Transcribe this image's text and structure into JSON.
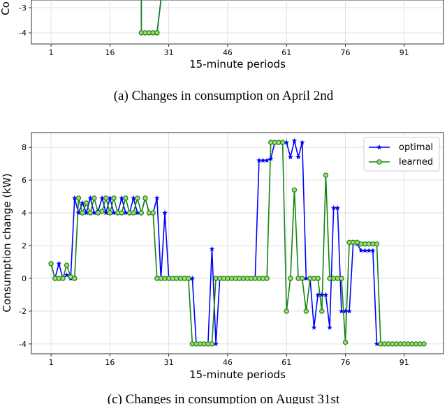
{
  "caption_top": "(a) Changes in consumption on April 2nd",
  "caption_bottom": "(c) Changes in consumption on August 31st",
  "chart_data": [
    {
      "type": "line",
      "panel": "top (partially visible)",
      "xlabel": "15-minute periods",
      "ylabel": "Co",
      "x_ticks": [
        1,
        16,
        31,
        46,
        61,
        76,
        91
      ],
      "y_ticks": [
        -3,
        -4
      ],
      "series": [
        {
          "name": "",
          "color": "#0000ff",
          "x": [
            24,
            24,
            25,
            26,
            27,
            28,
            28,
            29
          ],
          "y": [
            0,
            -4,
            -4,
            -4,
            -4,
            -4,
            -4,
            -2.5
          ]
        },
        {
          "name": "",
          "color": "#138413",
          "x": [
            24,
            24,
            25,
            26,
            27,
            28,
            28,
            29
          ],
          "y": [
            0,
            -4,
            -4,
            -4,
            -4,
            -4,
            -4,
            -2.5
          ]
        }
      ]
    },
    {
      "type": "line",
      "panel": "bottom",
      "xlabel": "15-minute periods",
      "ylabel": "Consumption change (kW)",
      "xlim": [
        -4,
        101
      ],
      "ylim": [
        -4.6,
        8.9
      ],
      "grid": true,
      "legend_position": "top-right",
      "x_ticks": [
        1,
        16,
        31,
        46,
        61,
        76,
        91
      ],
      "y_ticks": [
        -4,
        -2,
        0,
        2,
        4,
        6,
        8
      ],
      "x": [
        1,
        2,
        3,
        4,
        5,
        6,
        7,
        8,
        9,
        10,
        11,
        12,
        13,
        14,
        15,
        16,
        17,
        18,
        19,
        20,
        21,
        22,
        23,
        24,
        25,
        26,
        27,
        28,
        29,
        30,
        31,
        32,
        33,
        34,
        35,
        36,
        37,
        38,
        39,
        40,
        41,
        42,
        43,
        44,
        45,
        46,
        47,
        48,
        49,
        50,
        51,
        52,
        53,
        54,
        55,
        56,
        57,
        58,
        59,
        60,
        61,
        62,
        63,
        64,
        65,
        66,
        67,
        68,
        69,
        70,
        71,
        72,
        73,
        74,
        75,
        76,
        77,
        78,
        79,
        80,
        81,
        82,
        83,
        84,
        85,
        86,
        87,
        88,
        89,
        90,
        91,
        92,
        93,
        94,
        95,
        96
      ],
      "series": [
        {
          "name": "optimal",
          "color": "#0000ff",
          "marker": "star",
          "values": [
            0.9,
            0.0,
            0.9,
            0.0,
            0.2,
            0.0,
            4.9,
            4.0,
            4.6,
            4.0,
            4.9,
            4.0,
            4.1,
            4.9,
            4.0,
            4.9,
            4.0,
            4.0,
            4.9,
            4.0,
            4.0,
            4.9,
            4.0,
            4.0,
            4.9,
            4.0,
            4.0,
            4.9,
            0.0,
            4.0,
            0.0,
            0.0,
            0.0,
            0.0,
            0.0,
            0.0,
            0.0,
            -4.0,
            -4.0,
            -4.0,
            -4.0,
            1.8,
            -4.0,
            0.0,
            0.0,
            0.0,
            0.0,
            0.0,
            0.0,
            0.0,
            0.0,
            0.0,
            0.0,
            7.2,
            7.2,
            7.2,
            7.3,
            8.3,
            8.3,
            8.3,
            8.3,
            7.4,
            8.4,
            7.4,
            8.3,
            0.0,
            0.0,
            -3.0,
            -1.0,
            -1.0,
            -1.0,
            -3.0,
            4.3,
            4.3,
            -2.0,
            -2.0,
            -2.0,
            2.2,
            2.1,
            1.7,
            1.7,
            1.7,
            1.7,
            -4.0,
            -4.0,
            -4.0,
            -4.0,
            -4.0,
            -4.0,
            -4.0,
            -4.0,
            -4.0,
            -4.0,
            -4.0,
            -4.0,
            -4.0
          ]
        },
        {
          "name": "learned",
          "color": "#138413",
          "marker": "circle",
          "values": [
            0.9,
            0.0,
            0.0,
            0.0,
            0.8,
            0.1,
            0.0,
            4.9,
            4.0,
            4.6,
            4.0,
            4.9,
            4.0,
            4.1,
            4.9,
            4.0,
            4.9,
            4.0,
            4.0,
            4.9,
            4.0,
            4.0,
            4.9,
            4.0,
            4.9,
            4.0,
            4.0,
            0.0,
            0.0,
            0.0,
            0.0,
            0.0,
            0.0,
            0.0,
            0.0,
            0.0,
            -4.0,
            -4.0,
            -4.0,
            -4.0,
            -4.0,
            -4.0,
            0.0,
            0.0,
            0.0,
            0.0,
            0.0,
            0.0,
            0.0,
            0.0,
            0.0,
            0.0,
            0.0,
            0.0,
            0.0,
            0.0,
            8.3,
            8.3,
            8.3,
            8.3,
            -2.0,
            0.0,
            5.4,
            0.0,
            0.0,
            -2.0,
            0.0,
            0.0,
            0.0,
            -2.0,
            6.3,
            0.0,
            0.0,
            0.0,
            0.0,
            -3.9,
            2.2,
            2.2,
            2.2,
            2.1,
            2.1,
            2.1,
            2.1,
            2.1,
            -4.0,
            -4.0,
            -4.0,
            -4.0,
            -4.0,
            -4.0,
            -4.0,
            -4.0,
            -4.0,
            -4.0,
            -4.0,
            -4.0
          ]
        }
      ]
    }
  ]
}
